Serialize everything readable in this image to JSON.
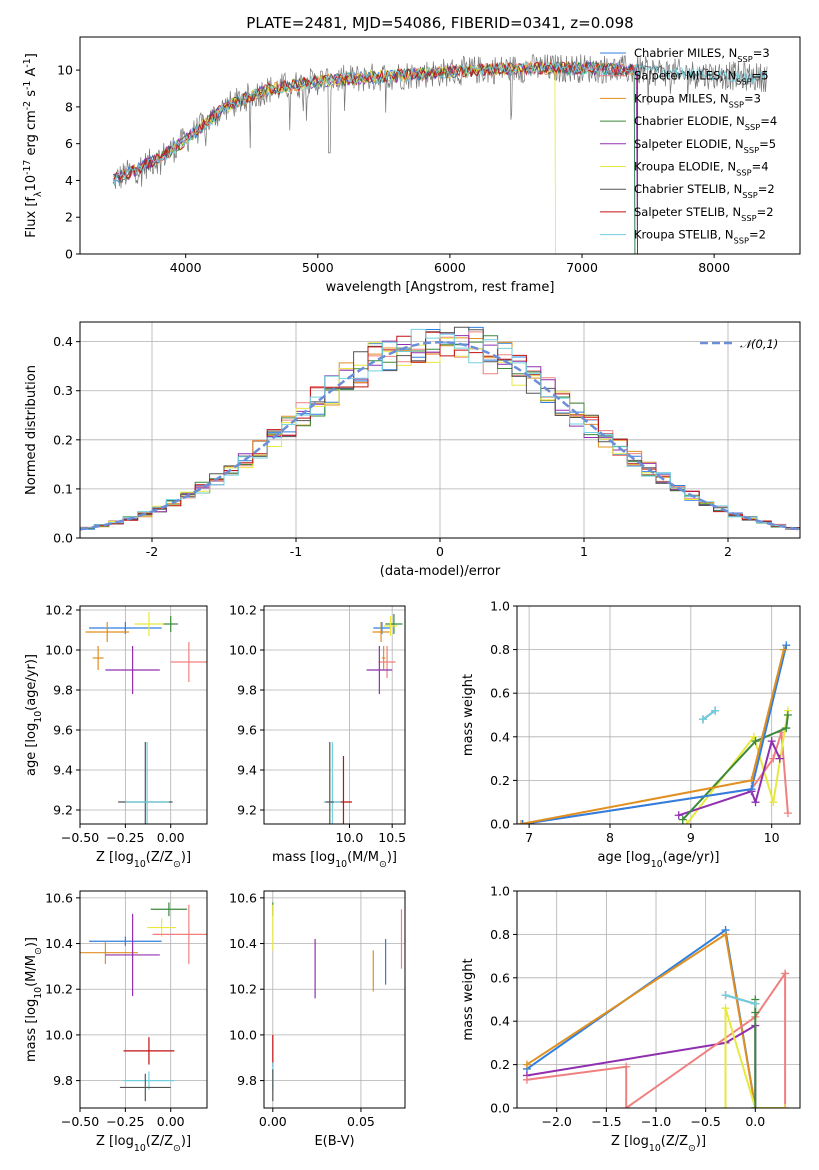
{
  "figure": {
    "title": "PLATE=2481, MJD=54086, FIBERID=0341, z=0.098"
  },
  "series_names": [
    "Chabrier MILES, N$_{SSP}$=3",
    "Salpeter MILES, N$_{SSP}$=5",
    "Kroupa MILES, N$_{SSP}$=3",
    "Chabrier ELODIE, N$_{SSP}$=4",
    "Salpeter ELODIE, N$_{SSP}$=5",
    "Kroupa ELODIE, N$_{SSP}$=4",
    "Chabrier STELIB, N$_{SSP}$=2",
    "Salpeter STELIB, N$_{SSP}$=2",
    "Kroupa STELIB, N$_{SSP}$=2"
  ],
  "colors": [
    "#2f7fe0",
    "#f08080",
    "#e09020",
    "#3a8a3a",
    "#9030b0",
    "#e8e840",
    "#555555",
    "#c01010",
    "#70d0e0"
  ],
  "chart_data": [
    {
      "id": "spectrum",
      "type": "line",
      "xlabel": "wavelength [Angstrom, rest frame]",
      "ylabel": "Flux [f$_\\lambda$10$^{-17}$ erg cm$^{-2}$ s$^{-1}$ A$^{-1}$]",
      "xlim": [
        3200,
        8650
      ],
      "ylim": [
        0,
        11.8
      ],
      "xticks": [
        4000,
        5000,
        6000,
        7000,
        8000
      ],
      "yticks": [
        0,
        2,
        4,
        6,
        8,
        10
      ],
      "grid": false,
      "legend": "top-right",
      "x": [
        3450,
        3600,
        3800,
        4000,
        4300,
        4600,
        5000,
        5400,
        5800,
        6200,
        6600,
        7000,
        7400,
        7800,
        8400
      ],
      "envelope": [
        4.0,
        4.5,
        5.2,
        6.2,
        8.0,
        8.9,
        9.4,
        9.6,
        9.8,
        10.0,
        10.1,
        10.1,
        10.0,
        9.8,
        9.6
      ]
    },
    {
      "id": "residuals",
      "type": "histogram",
      "xlabel": "(data-model)/error",
      "ylabel": "Normed distribution",
      "xlim": [
        -2.5,
        2.5
      ],
      "ylim": [
        0,
        0.44
      ],
      "xticks": [
        -2,
        -1,
        0,
        1,
        2
      ],
      "yticks": [
        0.0,
        0.1,
        0.2,
        0.3,
        0.4
      ],
      "grid": true,
      "legend": "top-right",
      "bin_width": 0.1,
      "reference_label": "$\\mathcal{N}(0,1)$",
      "reference": "normal(0,1)"
    },
    {
      "id": "age_vs_Z",
      "type": "errorbar",
      "xlabel": "Z [log$_{10}$(Z/Z$_\\odot$)]",
      "ylabel": "age  [log$_{10}$(age/yr)]",
      "xlim": [
        -0.5,
        0.2
      ],
      "ylim": [
        9.13,
        10.22
      ],
      "xticks": [
        -0.5,
        -0.25,
        0.0
      ],
      "xticklabels": [
        "−0.50",
        "−0.25",
        "0.00"
      ],
      "yticks": [
        9.2,
        9.4,
        9.6,
        9.8,
        10.0,
        10.2
      ],
      "grid": true,
      "points": [
        {
          "series": 0,
          "x": -0.25,
          "y": 10.11,
          "xerr": 0.2,
          "yerr": 0.03
        },
        {
          "series": 2,
          "x": -0.35,
          "y": 10.09,
          "xerr": 0.12,
          "yerr": 0.05
        },
        {
          "series": 3,
          "x": 0.0,
          "y": 10.13,
          "xerr": 0.04,
          "yerr": 0.04
        },
        {
          "series": 5,
          "x": -0.12,
          "y": 10.13,
          "xerr": 0.08,
          "yerr": 0.06
        },
        {
          "series": 1,
          "x": 0.1,
          "y": 9.94,
          "xerr": 0.1,
          "yerr": 0.1
        },
        {
          "series": 2,
          "x": -0.4,
          "y": 9.96,
          "xerr": 0.03,
          "yerr": 0.06
        },
        {
          "series": 4,
          "x": -0.21,
          "y": 9.9,
          "xerr": 0.15,
          "yerr": 0.12
        },
        {
          "series": 6,
          "x": -0.14,
          "y": 9.24,
          "xerr": 0.15,
          "yerr": 0.3
        },
        {
          "series": 8,
          "x": -0.13,
          "y": 9.24,
          "xerr": 0.12,
          "yerr": 0.3
        }
      ]
    },
    {
      "id": "age_vs_mass",
      "type": "errorbar",
      "xlabel": "mass [log$_{10}$(M/M$_\\odot$)]",
      "ylabel": "",
      "xlim": [
        9.0,
        10.65
      ],
      "ylim": [
        9.13,
        10.22
      ],
      "xticks": [
        10.0,
        10.5
      ],
      "xticklabels": [
        "10.0",
        "10.5"
      ],
      "yticks": [
        9.2,
        9.4,
        9.6,
        9.8,
        10.0,
        10.2
      ],
      "grid": true,
      "points": [
        {
          "series": 0,
          "x": 10.38,
          "y": 10.11,
          "xerr": 0.1,
          "yerr": 0.03
        },
        {
          "series": 2,
          "x": 10.37,
          "y": 10.09,
          "xerr": 0.1,
          "yerr": 0.05
        },
        {
          "series": 3,
          "x": 10.52,
          "y": 10.13,
          "xerr": 0.1,
          "yerr": 0.05
        },
        {
          "series": 5,
          "x": 10.48,
          "y": 10.12,
          "xerr": 0.08,
          "yerr": 0.05
        },
        {
          "series": 1,
          "x": 10.44,
          "y": 9.94,
          "xerr": 0.1,
          "yerr": 0.08
        },
        {
          "series": 2,
          "x": 10.4,
          "y": 9.96,
          "xerr": 0.02,
          "yerr": 0.06
        },
        {
          "series": 4,
          "x": 10.35,
          "y": 9.9,
          "xerr": 0.15,
          "yerr": 0.12
        },
        {
          "series": 7,
          "x": 9.93,
          "y": 9.24,
          "xerr": 0.1,
          "yerr": 0.23
        },
        {
          "series": 8,
          "x": 9.8,
          "y": 9.24,
          "xerr": 0.1,
          "yerr": 0.3
        },
        {
          "series": 6,
          "x": 9.77,
          "y": 9.24,
          "xerr": 0.05,
          "yerr": 0.3
        }
      ]
    },
    {
      "id": "mass_weight_vs_age",
      "type": "line",
      "xlabel": "age  [log$_{10}$(age/yr)]",
      "ylabel": "mass weight",
      "xlim": [
        6.85,
        10.35
      ],
      "ylim": [
        0,
        1.0
      ],
      "xticks": [
        7,
        8,
        9,
        10
      ],
      "yticks": [
        0.0,
        0.2,
        0.4,
        0.6,
        0.8,
        1.0
      ],
      "grid": true,
      "series": [
        {
          "index": 1,
          "x": [
            6.92,
            9.75,
            10.02,
            10.12,
            10.2
          ],
          "y": [
            0.0,
            0.16,
            0.3,
            0.42,
            0.05
          ]
        },
        {
          "index": 5,
          "x": [
            8.95,
            9.78,
            10.02,
            10.2
          ],
          "y": [
            0.0,
            0.4,
            0.1,
            0.52
          ]
        },
        {
          "index": 4,
          "x": [
            8.85,
            9.75,
            9.8,
            10.0,
            10.1
          ],
          "y": [
            0.04,
            0.15,
            0.1,
            0.38,
            0.3
          ]
        },
        {
          "index": 3,
          "x": [
            8.9,
            9.8,
            10.18,
            10.2
          ],
          "y": [
            0.02,
            0.38,
            0.44,
            0.5
          ]
        },
        {
          "index": 0,
          "x": [
            6.92,
            9.75,
            10.18
          ],
          "y": [
            0.0,
            0.16,
            0.82
          ]
        },
        {
          "index": 2,
          "x": [
            6.9,
            9.75,
            10.15
          ],
          "y": [
            0.0,
            0.2,
            0.8
          ]
        },
        {
          "index": 6,
          "x": [
            9.15,
            9.3
          ],
          "y": [
            0.48,
            0.52
          ]
        },
        {
          "index": 8,
          "x": [
            9.15,
            9.3
          ],
          "y": [
            0.48,
            0.52
          ]
        }
      ]
    },
    {
      "id": "mass_vs_Z",
      "type": "errorbar",
      "xlabel": "Z [log$_{10}$(Z/Z$_\\odot$)]",
      "ylabel": "mass [log$_{10}$(M/M$_\\odot$)]",
      "xlim": [
        -0.5,
        0.2
      ],
      "ylim": [
        9.68,
        10.63
      ],
      "xticks": [
        -0.5,
        -0.25,
        0.0
      ],
      "xticklabels": [
        "−0.50",
        "−0.25",
        "0.00"
      ],
      "yticks": [
        9.8,
        10.0,
        10.2,
        10.4,
        10.6
      ],
      "grid": true,
      "points": [
        {
          "series": 3,
          "x": -0.01,
          "y": 10.55,
          "xerr": 0.1,
          "yerr": 0.03
        },
        {
          "series": 5,
          "x": -0.05,
          "y": 10.47,
          "xerr": 0.08,
          "yerr": 0.04
        },
        {
          "series": 1,
          "x": 0.1,
          "y": 10.44,
          "xerr": 0.2,
          "yerr": 0.13
        },
        {
          "series": 0,
          "x": -0.25,
          "y": 10.41,
          "xerr": 0.2,
          "yerr": 0.02
        },
        {
          "series": 2,
          "x": -0.36,
          "y": 10.36,
          "xerr": 0.18,
          "yerr": 0.05
        },
        {
          "series": 4,
          "x": -0.21,
          "y": 10.35,
          "xerr": 0.15,
          "yerr": 0.18
        },
        {
          "series": 7,
          "x": -0.12,
          "y": 9.93,
          "xerr": 0.14,
          "yerr": 0.06
        },
        {
          "series": 8,
          "x": -0.12,
          "y": 9.8,
          "xerr": 0.14,
          "yerr": 0.04
        },
        {
          "series": 6,
          "x": -0.14,
          "y": 9.77,
          "xerr": 0.14,
          "yerr": 0.06
        }
      ]
    },
    {
      "id": "mass_vs_EBV",
      "type": "errorbar",
      "xlabel": "E(B-V)",
      "ylabel": "",
      "xlim": [
        -0.005,
        0.075
      ],
      "ylim": [
        9.68,
        10.63
      ],
      "xticks": [
        0.0,
        0.05
      ],
      "xticklabels": [
        "0.00",
        "0.05"
      ],
      "yticks": [
        9.8,
        10.0,
        10.2,
        10.4,
        10.6
      ],
      "grid": true,
      "points": [
        {
          "series": 3,
          "x": 0.0,
          "y": 10.55,
          "xerr": 0,
          "yerr": 0.03
        },
        {
          "series": 5,
          "x": 0.0,
          "y": 10.47,
          "xerr": 0,
          "yerr": 0.1
        },
        {
          "series": 4,
          "x": 0.024,
          "y": 10.29,
          "xerr": 0,
          "yerr": 0.13
        },
        {
          "series": 2,
          "x": 0.057,
          "y": 10.28,
          "xerr": 0,
          "yerr": 0.09
        },
        {
          "series": 0,
          "x": 0.064,
          "y": 10.32,
          "xerr": 0,
          "yerr": 0.1
        },
        {
          "series": 1,
          "x": 0.073,
          "y": 10.42,
          "xerr": 0,
          "yerr": 0.13
        },
        {
          "series": 7,
          "x": 0.0,
          "y": 9.93,
          "xerr": 0,
          "yerr": 0.07
        },
        {
          "series": 8,
          "x": 0.0,
          "y": 9.82,
          "xerr": 0,
          "yerr": 0.06
        },
        {
          "series": 6,
          "x": 0.0,
          "y": 9.78,
          "xerr": 0,
          "yerr": 0.07
        }
      ]
    },
    {
      "id": "mass_weight_vs_Z",
      "type": "line",
      "xlabel": "Z [log$_{10}$(Z/Z$_\\odot$)]",
      "ylabel": "mass weight",
      "xlim": [
        -2.4,
        0.45
      ],
      "ylim": [
        0,
        1.0
      ],
      "xticks": [
        -2.0,
        -1.5,
        -1.0,
        -0.5,
        0.0
      ],
      "xticklabels": [
        "−2.0",
        "−1.5",
        "−1.0",
        "−0.5",
        "0.0"
      ],
      "yticks": [
        0.0,
        0.2,
        0.4,
        0.6,
        0.8,
        1.0
      ],
      "grid": true,
      "series": [
        {
          "index": 0,
          "x": [
            -2.3,
            -0.3,
            0.0
          ],
          "y": [
            0.18,
            0.82,
            0.0
          ]
        },
        {
          "index": 2,
          "x": [
            -2.3,
            -0.3,
            0.0
          ],
          "y": [
            0.2,
            0.8,
            0.0
          ]
        },
        {
          "index": 4,
          "x": [
            -2.3,
            -0.3,
            0.0,
            0.0
          ],
          "y": [
            0.15,
            0.3,
            0.38,
            0.0
          ]
        },
        {
          "index": 1,
          "x": [
            -2.3,
            -1.3,
            -1.3,
            0.0,
            0.3,
            0.3
          ],
          "y": [
            0.13,
            0.19,
            0.0,
            0.42,
            0.62,
            0.0
          ]
        },
        {
          "index": 5,
          "x": [
            -0.3,
            -0.3,
            0.0,
            0.3
          ],
          "y": [
            0.0,
            0.46,
            0.0,
            0.0
          ]
        },
        {
          "index": 3,
          "x": [
            0.0,
            0.0,
            0.0
          ],
          "y": [
            0.0,
            0.5,
            0.44
          ]
        },
        {
          "index": 6,
          "x": [
            -0.3,
            0.0
          ],
          "y": [
            0.52,
            0.48
          ]
        },
        {
          "index": 8,
          "x": [
            -0.3,
            0.0
          ],
          "y": [
            0.52,
            0.48
          ]
        }
      ]
    }
  ]
}
